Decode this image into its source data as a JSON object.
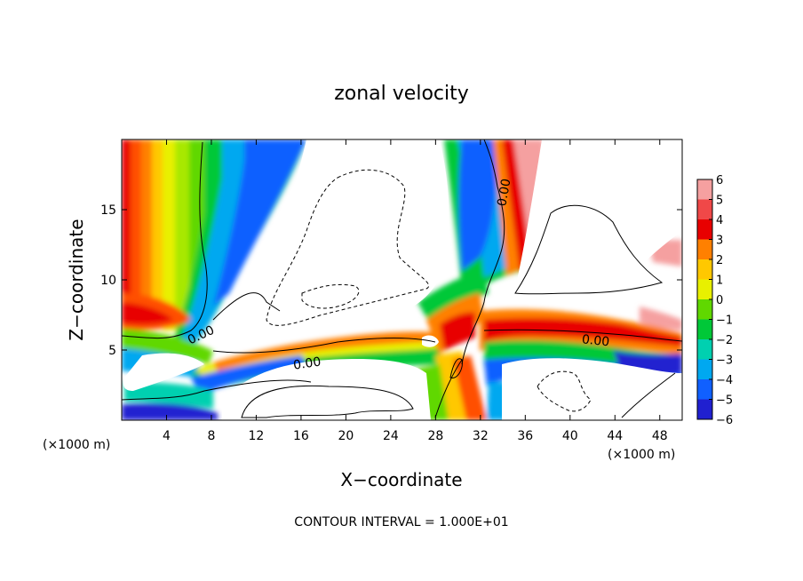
{
  "chart_data": {
    "type": "contour",
    "title": "zonal velocity",
    "xlabel": "X−coordinate",
    "ylabel": "Z−coordinate",
    "x_unit": "(×1000 m)",
    "y_unit": "(×1000 m)",
    "xlim": [
      0,
      50
    ],
    "ylim": [
      0,
      20
    ],
    "x_ticks": [
      4,
      8,
      12,
      16,
      20,
      24,
      28,
      32,
      36,
      40,
      44,
      48
    ],
    "y_ticks": [
      5,
      10,
      15
    ],
    "colorbar": {
      "ticks": [
        "6",
        "5",
        "4",
        "3",
        "2",
        "1",
        "0",
        "−1",
        "−2",
        "−3",
        "−4",
        "−5",
        "−6"
      ],
      "values": [
        6,
        5,
        4,
        3,
        2,
        1,
        0,
        -1,
        -2,
        -3,
        -4,
        -5,
        -6
      ],
      "colors": [
        "#f5a0a0",
        "#f04848",
        "#e80000",
        "#ff8000",
        "#ffc800",
        "#e8f000",
        "#60d800",
        "#00c838",
        "#00d0b0",
        "#00a8f0",
        "#1060ff",
        "#2020d0",
        "#7010c0"
      ]
    },
    "contour_labels": [
      "0.00",
      "0.00",
      "0.00",
      "0.00"
    ],
    "footer": "CONTOUR INTERVAL = 1.000E+01"
  }
}
